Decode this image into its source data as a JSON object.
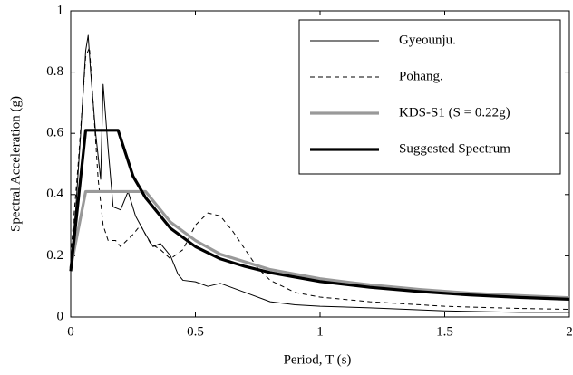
{
  "chart_data": {
    "type": "line",
    "xlabel": "Period, T (s)",
    "ylabel": "Spectral Acceleration (g)",
    "xlim": [
      0,
      2
    ],
    "xticks": [
      0,
      0.5,
      1,
      1.5,
      2
    ],
    "ylim": [
      0,
      1
    ],
    "yticks": [
      0,
      0.2,
      0.4,
      0.6,
      0.8,
      1
    ],
    "legend": "upper right",
    "series": [
      {
        "name": "Gyeounju.",
        "color": "#000000",
        "style": "solid",
        "weight": "thin",
        "x": [
          0,
          0.02,
          0.04,
          0.06,
          0.07,
          0.08,
          0.1,
          0.12,
          0.13,
          0.15,
          0.17,
          0.2,
          0.23,
          0.26,
          0.3,
          0.33,
          0.36,
          0.38,
          0.4,
          0.43,
          0.45,
          0.5,
          0.55,
          0.6,
          0.7,
          0.8,
          0.9,
          1.0,
          1.2,
          1.5,
          1.8,
          2.0
        ],
        "values": [
          0.18,
          0.35,
          0.6,
          0.87,
          0.92,
          0.8,
          0.6,
          0.45,
          0.76,
          0.55,
          0.36,
          0.35,
          0.41,
          0.33,
          0.27,
          0.23,
          0.24,
          0.22,
          0.2,
          0.14,
          0.12,
          0.115,
          0.1,
          0.11,
          0.08,
          0.05,
          0.04,
          0.035,
          0.03,
          0.02,
          0.015,
          0.015
        ]
      },
      {
        "name": "Pohang.",
        "color": "#000000",
        "style": "dashed",
        "weight": "thin",
        "x": [
          0,
          0.03,
          0.06,
          0.075,
          0.09,
          0.11,
          0.13,
          0.15,
          0.18,
          0.2,
          0.25,
          0.28,
          0.32,
          0.36,
          0.4,
          0.45,
          0.5,
          0.55,
          0.6,
          0.65,
          0.7,
          0.75,
          0.8,
          0.9,
          1.0,
          1.2,
          1.5,
          1.8,
          2.0
        ],
        "values": [
          0.2,
          0.5,
          0.85,
          0.88,
          0.7,
          0.45,
          0.3,
          0.25,
          0.25,
          0.23,
          0.27,
          0.3,
          0.24,
          0.22,
          0.19,
          0.22,
          0.3,
          0.34,
          0.33,
          0.28,
          0.22,
          0.16,
          0.12,
          0.08,
          0.065,
          0.05,
          0.035,
          0.028,
          0.025
        ]
      },
      {
        "name": "KDS-S1 (S = 0.22g)",
        "color": "#999999",
        "style": "solid",
        "weight": "thick",
        "x": [
          0,
          0.06,
          0.3,
          0.4,
          0.5,
          0.6,
          0.8,
          1.0,
          1.2,
          1.4,
          1.6,
          1.8,
          2.0
        ],
        "values": [
          0.16,
          0.41,
          0.41,
          0.31,
          0.25,
          0.205,
          0.155,
          0.125,
          0.105,
          0.09,
          0.078,
          0.07,
          0.063
        ]
      },
      {
        "name": "Suggested Spectrum",
        "color": "#000000",
        "style": "solid",
        "weight": "thick",
        "x": [
          0,
          0.06,
          0.19,
          0.25,
          0.3,
          0.4,
          0.5,
          0.6,
          0.7,
          0.8,
          1.0,
          1.2,
          1.4,
          1.6,
          1.8,
          2.0
        ],
        "values": [
          0.15,
          0.61,
          0.61,
          0.46,
          0.39,
          0.29,
          0.23,
          0.19,
          0.165,
          0.145,
          0.116,
          0.097,
          0.083,
          0.072,
          0.064,
          0.058
        ]
      }
    ]
  }
}
